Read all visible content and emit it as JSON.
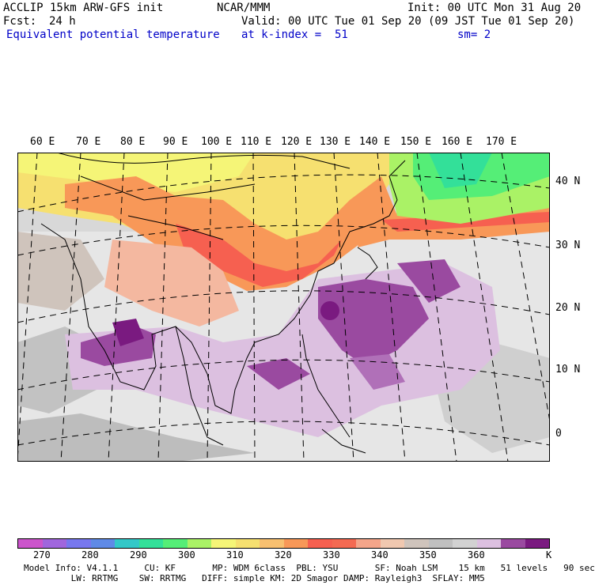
{
  "header": {
    "model": "ACCLIP 15km ARW-GFS init",
    "org": "NCAR/MMM",
    "init": "Init: 00 UTC Mon 31 Aug 20",
    "fcst_label": "Fcst:",
    "fcst_value": "24 h",
    "valid": "Valid: 00 UTC Tue 01 Sep 20 (09 JST Tue 01 Sep 20)",
    "field": "Equivalent potential temperature",
    "level": "at k-index =  51",
    "smooth": "sm= 2"
  },
  "map": {
    "lon_labels": [
      "60 E",
      "70 E",
      "80 E",
      "90 E",
      "100 E",
      "110 E",
      "120 E",
      "130 E",
      "140 E",
      "150 E",
      "160 E",
      "170 E"
    ],
    "lat_labels": [
      "40 N",
      "30 N",
      "20 N",
      "10 N",
      "0"
    ]
  },
  "colorbar": {
    "colors": [
      "#cc55cc",
      "#a066dd",
      "#7777ee",
      "#5f8ae6",
      "#33c8c8",
      "#33e099",
      "#55ee77",
      "#aaf266",
      "#f5f577",
      "#f6e070",
      "#f8c070",
      "#f89858",
      "#f66050",
      "#f46a52",
      "#f4a58a",
      "#f0c8b0",
      "#cfc4bc",
      "#c0c0c0",
      "#d2d2d2",
      "#dcc0e0",
      "#9a4aa0",
      "#7a1a80"
    ],
    "tick_labels": [
      "270",
      "280",
      "290",
      "300",
      "310",
      "320",
      "330",
      "340",
      "350",
      "360"
    ],
    "unit": "K"
  },
  "footer": {
    "line1": "Model Info: V4.1.1     CU: KF       MP: WDM 6class  PBL: YSU       SF: Noah LSM    15 km   51 levels   90 sec",
    "line2": "         LW: RRTMG    SW: RRTMG   DIFF: simple KM: 2D Smagor DAMP: Rayleigh3  SFLAY: MM5"
  }
}
